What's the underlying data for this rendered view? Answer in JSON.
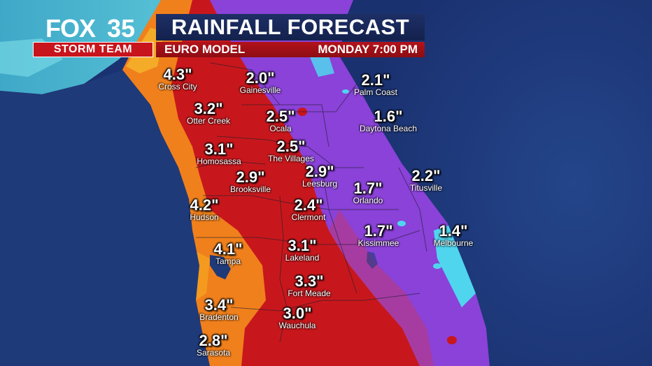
{
  "header": {
    "logo_brand": "FOX",
    "logo_number": "35",
    "team_label": "STORM TEAM",
    "title": "RAINFALL FORECAST",
    "model": "EURO MODEL",
    "valid_time": "MONDAY  7:00 PM"
  },
  "colors": {
    "ocean": "#1f3a78",
    "heavy_red": "#c8171c",
    "orange": "#f08a1c",
    "purple": "#8a3fd6",
    "cyan": "#4fd6ee"
  },
  "locations": [
    {
      "name": "Cross City",
      "amount": "4.3\""
    },
    {
      "name": "Gainesville",
      "amount": "2.0\""
    },
    {
      "name": "Palm Coast",
      "amount": "2.1\""
    },
    {
      "name": "Otter Creek",
      "amount": "3.2\""
    },
    {
      "name": "Ocala",
      "amount": "2.5\""
    },
    {
      "name": "Daytona Beach",
      "amount": "1.6\""
    },
    {
      "name": "Homosassa",
      "amount": "3.1\""
    },
    {
      "name": "The Villages",
      "amount": "2.5\""
    },
    {
      "name": "Brooksville",
      "amount": "2.9\""
    },
    {
      "name": "Leesburg",
      "amount": "2.9\""
    },
    {
      "name": "Orlando",
      "amount": "1.7\""
    },
    {
      "name": "Titusville",
      "amount": "2.2\""
    },
    {
      "name": "Hudson",
      "amount": "4.2\""
    },
    {
      "name": "Clermont",
      "amount": "2.4\""
    },
    {
      "name": "Kissimmee",
      "amount": "1.7\""
    },
    {
      "name": "Melbourne",
      "amount": "1.4\""
    },
    {
      "name": "Tampa",
      "amount": "4.1\""
    },
    {
      "name": "Lakeland",
      "amount": "3.1\""
    },
    {
      "name": "Fort Meade",
      "amount": "3.3\""
    },
    {
      "name": "Bradenton",
      "amount": "3.4\""
    },
    {
      "name": "Wauchula",
      "amount": "3.0\""
    },
    {
      "name": "Sarasota",
      "amount": "2.8\""
    }
  ]
}
